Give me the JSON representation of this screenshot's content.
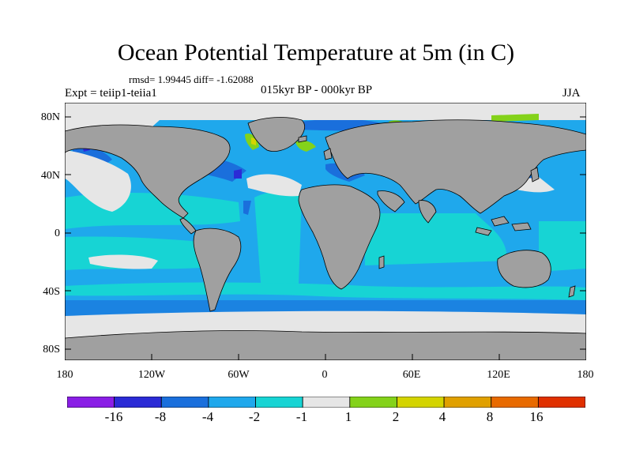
{
  "title": "Ocean Potential Temperature at 5m (in C)",
  "stats": "rmsd= 1.99445 diff= -1.62088",
  "experiment": "Expt = teiip1-teiia1",
  "subtitle": "015kyr BP - 000kyr BP",
  "season": "JJA",
  "y_ticks": [
    "80N",
    "40N",
    "0",
    "40S",
    "80S"
  ],
  "x_ticks": [
    "180",
    "120W",
    "60W",
    "0",
    "60E",
    "120E",
    "180"
  ],
  "colorbar": {
    "labels": [
      "-16",
      "-8",
      "-4",
      "-2",
      "-1",
      "1",
      "2",
      "4",
      "8",
      "16"
    ],
    "colors": [
      "#8a1ee6",
      "#2b2bd6",
      "#1a6fdc",
      "#1fa8ec",
      "#17d4d4",
      "#e6e6e6",
      "#84d21a",
      "#d4d400",
      "#e0a000",
      "#e86a00",
      "#e03000"
    ]
  },
  "colors": {
    "land": "#a0a0a0",
    "ocean_main": "#1fa8ec",
    "ocean_light": "#17d4d4",
    "ice": "#e6e6e6",
    "cold": "#1a6fdc",
    "very_cold": "#2b2bd6",
    "warm": "#84d21a"
  }
}
